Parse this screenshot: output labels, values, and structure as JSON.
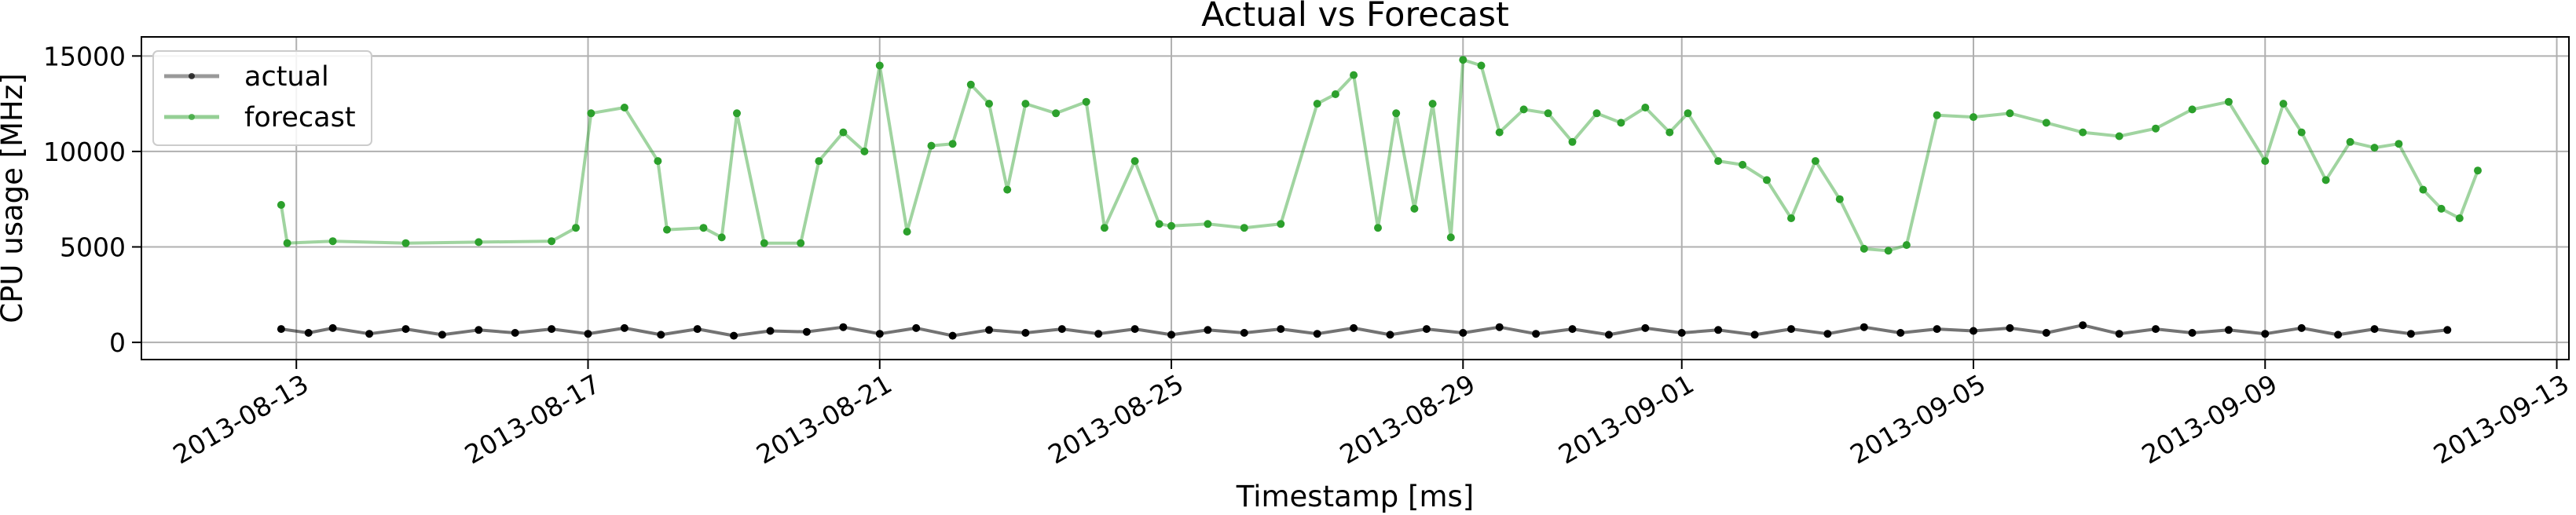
{
  "chart_data": {
    "type": "line",
    "title": "Actual vs Forecast",
    "xlabel": "Timestamp [ms]",
    "ylabel": "CPU usage [MHz]",
    "xlim": [
      "2013-08-10T21:00",
      "2013-09-13T04:00"
    ],
    "ylim": [
      -900,
      16000
    ],
    "x_ticks": [
      "2013-08-13",
      "2013-08-17",
      "2013-08-21",
      "2013-08-25",
      "2013-08-29",
      "2013-09-01",
      "2013-09-05",
      "2013-09-09",
      "2013-09-13"
    ],
    "y_ticks": [
      0,
      5000,
      10000,
      15000
    ],
    "grid": true,
    "legend": "upper-left",
    "series": [
      {
        "name": "actual",
        "color": "#000000",
        "x": [
          "2013-08-12T19:00",
          "2013-08-13T04:00",
          "2013-08-13T12:00",
          "2013-08-14T00:00",
          "2013-08-14T12:00",
          "2013-08-15T00:00",
          "2013-08-15T12:00",
          "2013-08-16T00:00",
          "2013-08-16T12:00",
          "2013-08-17T00:00",
          "2013-08-17T12:00",
          "2013-08-18T00:00",
          "2013-08-18T12:00",
          "2013-08-19T00:00",
          "2013-08-19T12:00",
          "2013-08-20T00:00",
          "2013-08-20T12:00",
          "2013-08-21T00:00",
          "2013-08-21T12:00",
          "2013-08-22T00:00",
          "2013-08-22T12:00",
          "2013-08-23T00:00",
          "2013-08-23T12:00",
          "2013-08-24T00:00",
          "2013-08-24T12:00",
          "2013-08-25T00:00",
          "2013-08-25T12:00",
          "2013-08-26T00:00",
          "2013-08-26T12:00",
          "2013-08-27T00:00",
          "2013-08-27T12:00",
          "2013-08-28T00:00",
          "2013-08-28T12:00",
          "2013-08-29T00:00",
          "2013-08-29T12:00",
          "2013-08-30T00:00",
          "2013-08-30T12:00",
          "2013-08-31T00:00",
          "2013-08-31T12:00",
          "2013-09-01T00:00",
          "2013-09-01T12:00",
          "2013-09-02T00:00",
          "2013-09-02T12:00",
          "2013-09-03T00:00",
          "2013-09-03T12:00",
          "2013-09-04T00:00",
          "2013-09-04T12:00",
          "2013-09-05T00:00",
          "2013-09-05T12:00",
          "2013-09-06T00:00",
          "2013-09-06T12:00",
          "2013-09-07T00:00",
          "2013-09-07T12:00",
          "2013-09-08T00:00",
          "2013-09-08T12:00",
          "2013-09-09T00:00",
          "2013-09-09T12:00",
          "2013-09-10T00:00",
          "2013-09-10T12:00",
          "2013-09-11T00:00",
          "2013-09-11T12:00"
        ],
        "y": [
          700,
          500,
          750,
          450,
          700,
          400,
          650,
          500,
          700,
          450,
          750,
          400,
          700,
          350,
          600,
          550,
          800,
          450,
          750,
          350,
          650,
          500,
          700,
          450,
          700,
          400,
          650,
          500,
          700,
          450,
          750,
          400,
          700,
          500,
          800,
          450,
          700,
          400,
          750,
          500,
          650,
          400,
          700,
          450,
          800,
          500,
          700,
          600,
          750,
          500,
          900,
          450,
          700,
          500,
          650,
          450,
          750,
          400,
          700,
          450,
          650
        ]
      },
      {
        "name": "forecast",
        "color": "#2ca02c",
        "x": [
          "2013-08-12T19:00",
          "2013-08-12T21:00",
          "2013-08-13T12:00",
          "2013-08-14T12:00",
          "2013-08-15T12:00",
          "2013-08-16T12:00",
          "2013-08-16T20:00",
          "2013-08-17T01:00",
          "2013-08-17T12:00",
          "2013-08-17T23:00",
          "2013-08-18T02:00",
          "2013-08-18T14:00",
          "2013-08-18T20:00",
          "2013-08-19T01:00",
          "2013-08-19T10:00",
          "2013-08-19T22:00",
          "2013-08-20T04:00",
          "2013-08-20T12:00",
          "2013-08-20T19:00",
          "2013-08-21T00:00",
          "2013-08-21T09:00",
          "2013-08-21T17:00",
          "2013-08-22T00:00",
          "2013-08-22T06:00",
          "2013-08-22T12:00",
          "2013-08-22T18:00",
          "2013-08-23T00:00",
          "2013-08-23T10:00",
          "2013-08-23T20:00",
          "2013-08-24T02:00",
          "2013-08-24T12:00",
          "2013-08-24T20:00",
          "2013-08-25T00:00",
          "2013-08-25T12:00",
          "2013-08-26T00:00",
          "2013-08-26T12:00",
          "2013-08-27T00:00",
          "2013-08-27T06:00",
          "2013-08-27T12:00",
          "2013-08-27T20:00",
          "2013-08-28T02:00",
          "2013-08-28T08:00",
          "2013-08-28T14:00",
          "2013-08-28T20:00",
          "2013-08-29T00:00",
          "2013-08-29T06:00",
          "2013-08-29T12:00",
          "2013-08-29T20:00",
          "2013-08-30T04:00",
          "2013-08-30T12:00",
          "2013-08-30T20:00",
          "2013-08-31T04:00",
          "2013-08-31T12:00",
          "2013-08-31T20:00",
          "2013-09-01T02:00",
          "2013-09-01T12:00",
          "2013-09-01T20:00",
          "2013-09-02T04:00",
          "2013-09-02T12:00",
          "2013-09-02T20:00",
          "2013-09-03T04:00",
          "2013-09-03T12:00",
          "2013-09-03T20:00",
          "2013-09-04T02:00",
          "2013-09-04T12:00",
          "2013-09-05T00:00",
          "2013-09-05T12:00",
          "2013-09-06T00:00",
          "2013-09-06T12:00",
          "2013-09-07T00:00",
          "2013-09-07T12:00",
          "2013-09-08T00:00",
          "2013-09-08T12:00",
          "2013-09-09T00:00",
          "2013-09-09T06:00",
          "2013-09-09T12:00",
          "2013-09-09T20:00",
          "2013-09-10T04:00",
          "2013-09-10T12:00",
          "2013-09-10T20:00",
          "2013-09-11T04:00",
          "2013-09-11T10:00",
          "2013-09-11T16:00",
          "2013-09-11T22:00"
        ],
        "y": [
          7200,
          5200,
          5300,
          5200,
          5250,
          5300,
          6000,
          12000,
          12300,
          9500,
          5900,
          6000,
          5500,
          12000,
          5200,
          5200,
          9500,
          11000,
          10000,
          14500,
          5800,
          10300,
          10400,
          13500,
          12500,
          8000,
          12500,
          12000,
          12600,
          6000,
          9500,
          6200,
          6100,
          6200,
          6000,
          6200,
          12500,
          13000,
          14000,
          6000,
          12000,
          7000,
          12500,
          5500,
          14800,
          14500,
          11000,
          12200,
          12000,
          10500,
          12000,
          11500,
          12300,
          11000,
          12000,
          9500,
          9300,
          8500,
          6500,
          9500,
          7500,
          4900,
          4800,
          5100,
          11900,
          11800,
          12000,
          11500,
          11000,
          10800,
          11200,
          12200,
          12600,
          9500,
          12500,
          11000,
          8500,
          10500,
          10200,
          10400,
          8000,
          7000,
          6500,
          9000
        ]
      }
    ]
  }
}
